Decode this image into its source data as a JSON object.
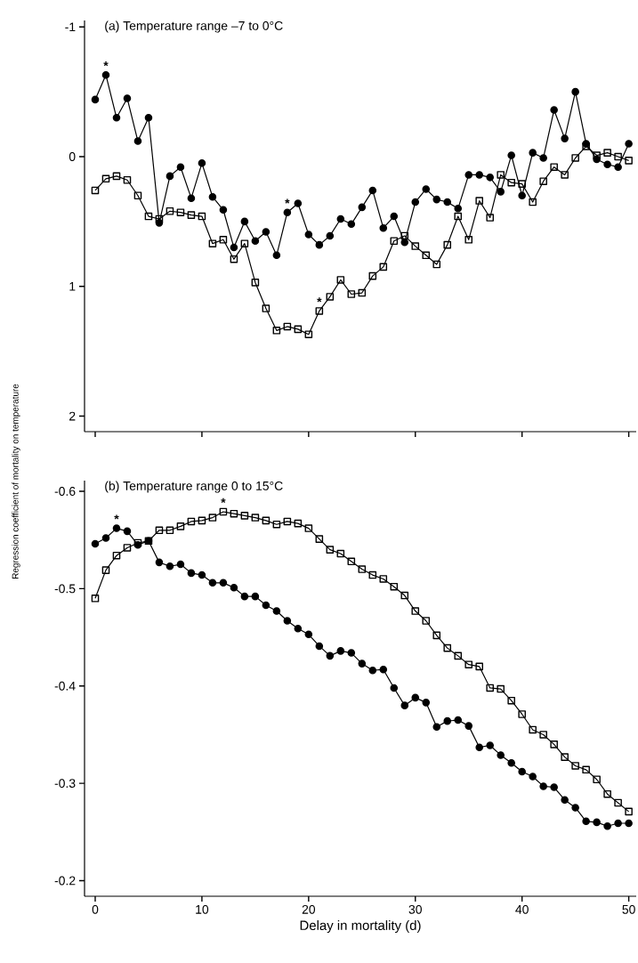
{
  "chart_data": [
    {
      "type": "line",
      "title": "(a)  Temperature range –7 to 0°C",
      "ylabel": "Regression coefficient of mortality on temperature",
      "x": [
        0,
        1,
        2,
        3,
        4,
        5,
        6,
        7,
        8,
        9,
        10,
        11,
        12,
        13,
        14,
        15,
        16,
        17,
        18,
        19,
        20,
        21,
        22,
        23,
        24,
        25,
        26,
        27,
        28,
        29,
        30,
        31,
        32,
        33,
        34,
        35,
        36,
        37,
        38,
        39,
        40,
        41,
        42,
        43,
        44,
        45,
        46,
        47,
        48,
        49,
        50
      ],
      "series": [
        {
          "color": "#000000",
          "marker": "circle",
          "values": [
            -0.44,
            -0.63,
            -0.3,
            -0.45,
            -0.12,
            -0.3,
            0.51,
            0.15,
            0.08,
            0.32,
            0.05,
            0.31,
            0.41,
            0.7,
            0.5,
            0.65,
            0.58,
            0.76,
            0.43,
            0.36,
            0.6,
            0.68,
            0.61,
            0.48,
            0.52,
            0.39,
            0.26,
            0.55,
            0.46,
            0.66,
            0.35,
            0.25,
            0.33,
            0.35,
            0.4,
            0.14,
            0.14,
            0.16,
            0.27,
            -0.01,
            0.3,
            -0.03,
            0.01,
            -0.36,
            -0.14,
            -0.5,
            -0.1,
            0.02,
            0.06,
            0.08,
            -0.1
          ]
        },
        {
          "color": "#000000",
          "marker": "square",
          "values": [
            0.26,
            0.17,
            0.15,
            0.18,
            0.3,
            0.46,
            0.48,
            0.42,
            0.43,
            0.45,
            0.46,
            0.67,
            0.64,
            0.79,
            0.67,
            0.97,
            1.17,
            1.34,
            1.31,
            1.33,
            1.37,
            1.19,
            1.08,
            0.95,
            1.06,
            1.05,
            0.92,
            0.85,
            0.65,
            0.61,
            0.69,
            0.76,
            0.83,
            0.68,
            0.46,
            0.64,
            0.34,
            0.47,
            0.14,
            0.2,
            0.21,
            0.35,
            0.19,
            0.08,
            0.14,
            0.01,
            -0.08,
            -0.01,
            -0.03,
            0.0,
            0.03
          ]
        }
      ],
      "xlim": [
        -1,
        50.7
      ],
      "xticks": [
        0,
        10,
        20,
        30,
        40,
        50
      ],
      "ylim": [
        2.12,
        -1.05
      ],
      "yticks": [
        -1,
        0,
        1,
        2
      ],
      "tick_labels": "y",
      "line_style": "solid",
      "annotations": [
        {
          "text": "*",
          "x": 1,
          "y": -0.63
        },
        {
          "text": "*",
          "x": 18,
          "y": 0.43
        },
        {
          "text": "*",
          "x": 21,
          "y": 1.19
        }
      ]
    },
    {
      "type": "line",
      "title": "(b)  Temperature range 0 to 15°C",
      "xlabel": "Delay in mortality (d)",
      "x": [
        0,
        1,
        2,
        3,
        4,
        5,
        6,
        7,
        8,
        9,
        10,
        11,
        12,
        13,
        14,
        15,
        16,
        17,
        18,
        19,
        20,
        21,
        22,
        23,
        24,
        25,
        26,
        27,
        28,
        29,
        30,
        31,
        32,
        33,
        34,
        35,
        36,
        37,
        38,
        39,
        40,
        41,
        42,
        43,
        44,
        45,
        46,
        47,
        48,
        49,
        50
      ],
      "series": [
        {
          "color": "#000000",
          "marker": "circle",
          "values": [
            -0.546,
            -0.552,
            -0.562,
            -0.559,
            -0.545,
            -0.549,
            -0.527,
            -0.523,
            -0.525,
            -0.516,
            -0.514,
            -0.506,
            -0.506,
            -0.501,
            -0.492,
            -0.492,
            -0.483,
            -0.477,
            -0.467,
            -0.459,
            -0.453,
            -0.441,
            -0.431,
            -0.436,
            -0.434,
            -0.423,
            -0.416,
            -0.417,
            -0.398,
            -0.38,
            -0.388,
            -0.383,
            -0.358,
            -0.364,
            -0.365,
            -0.359,
            -0.337,
            -0.339,
            -0.329,
            -0.321,
            -0.312,
            -0.307,
            -0.297,
            -0.296,
            -0.283,
            -0.275,
            -0.261,
            -0.26,
            -0.256,
            -0.259,
            -0.259
          ]
        },
        {
          "color": "#000000",
          "marker": "square",
          "values": [
            -0.49,
            -0.519,
            -0.534,
            -0.542,
            -0.547,
            -0.549,
            -0.56,
            -0.56,
            -0.564,
            -0.569,
            -0.57,
            -0.573,
            -0.579,
            -0.577,
            -0.575,
            -0.573,
            -0.57,
            -0.566,
            -0.569,
            -0.567,
            -0.562,
            -0.551,
            -0.54,
            -0.536,
            -0.528,
            -0.52,
            -0.514,
            -0.51,
            -0.502,
            -0.493,
            -0.477,
            -0.467,
            -0.452,
            -0.439,
            -0.431,
            -0.422,
            -0.42,
            -0.398,
            -0.397,
            -0.385,
            -0.371,
            -0.355,
            -0.35,
            -0.34,
            -0.327,
            -0.318,
            -0.314,
            -0.304,
            -0.289,
            -0.28,
            -0.271
          ]
        }
      ],
      "xlim": [
        -1,
        50.7
      ],
      "xticks": [
        0,
        10,
        20,
        30,
        40,
        50
      ],
      "ylim": [
        -0.184,
        -0.611
      ],
      "yticks": [
        -0.6,
        -0.5,
        -0.4,
        -0.3,
        -0.2
      ],
      "line_style": "solid",
      "annotations": [
        {
          "text": "*",
          "x": 2,
          "y": -0.562
        },
        {
          "text": "*",
          "x": 12,
          "y": -0.579
        }
      ]
    }
  ]
}
